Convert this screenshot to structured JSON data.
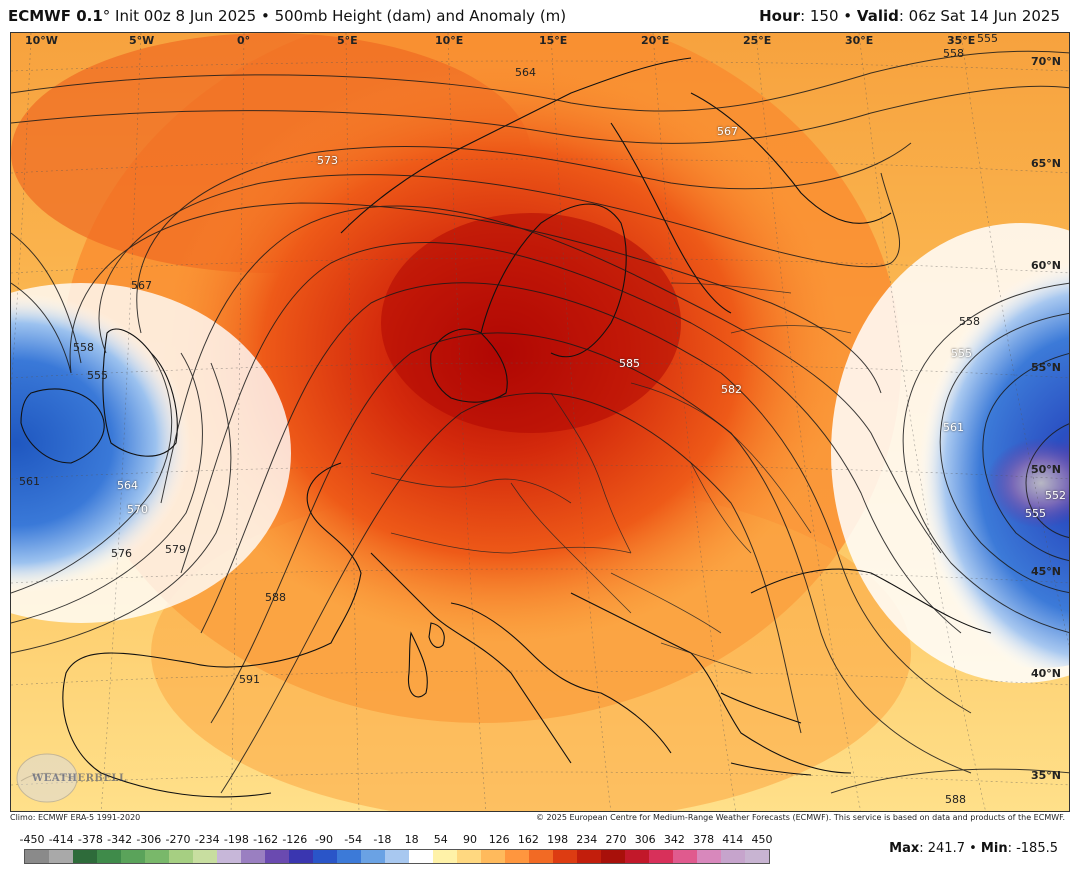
{
  "header": {
    "model": "ECMWF 0.1",
    "degree": "°",
    "init": " Init 00z 8 Jun 2025 • 500mb Height (dam) and Anomaly (m)",
    "hour_label": "Hour",
    "hour_value": ": 150 • ",
    "valid_label": "Valid",
    "valid_value": ": 06z Sat 14 Jun 2025"
  },
  "map": {
    "lon_labels": [
      "10°W",
      "5°W",
      "0°",
      "5°E",
      "10°E",
      "15°E",
      "20°E",
      "25°E",
      "30°E",
      "35°E"
    ],
    "lat_labels": [
      "70°N",
      "65°N",
      "60°N",
      "55°N",
      "50°N",
      "45°N",
      "40°N",
      "35°N"
    ],
    "contour_labels": [
      "564",
      "567",
      "558",
      "573",
      "567",
      "558",
      "555",
      "561",
      "564",
      "570",
      "576",
      "579",
      "588",
      "591",
      "585",
      "582",
      "558",
      "555",
      "561",
      "552",
      "555",
      "588",
      "555"
    ],
    "logo_text": "WEATHERBELL"
  },
  "footer": {
    "climo": "Climo: ECMWF ERA-5 1991-2020",
    "copyright": "© 2025 European Centre for Medium-Range Weather Forecasts (ECMWF). This service is based on data and products of the ECMWF."
  },
  "colorbar": {
    "labels": [
      "-450",
      "-414",
      "-378",
      "-342",
      "-306",
      "-270",
      "-234",
      "-198",
      "-162",
      "-126",
      "-90",
      "-54",
      "-18",
      "18",
      "54",
      "90",
      "126",
      "162",
      "198",
      "234",
      "270",
      "306",
      "342",
      "378",
      "414",
      "450"
    ],
    "colors": [
      "#8a8a8a",
      "#a9a9a9",
      "#2e6b3a",
      "#3f8b4a",
      "#5aa35a",
      "#79b86a",
      "#a6cf82",
      "#c8dea0",
      "#c7b7d9",
      "#9a7fc1",
      "#6a4ab0",
      "#3a36b0",
      "#2a55c8",
      "#3c7ad8",
      "#6aa2e4",
      "#a8c8f0",
      "#ffffff",
      "#fff2a8",
      "#ffd880",
      "#ffba5c",
      "#ff963e",
      "#f26a24",
      "#dd3c12",
      "#c21e0c",
      "#a8100a",
      "#c2182a",
      "#d8305a",
      "#e05a8e",
      "#d888bc",
      "#c6a4cc",
      "#c8b4d2"
    ],
    "max_label": "Max",
    "max_value": ": 241.7 • ",
    "min_label": "Min",
    "min_value": ": -185.5"
  },
  "colors": {
    "ridge_core": "#b50d05",
    "ridge": "#e6400e",
    "warm": "#f98a2e",
    "mild": "#fdc25a",
    "pale": "#ffe79a",
    "trough": "#2d63c9",
    "trough_core": "#4a3aa8"
  }
}
